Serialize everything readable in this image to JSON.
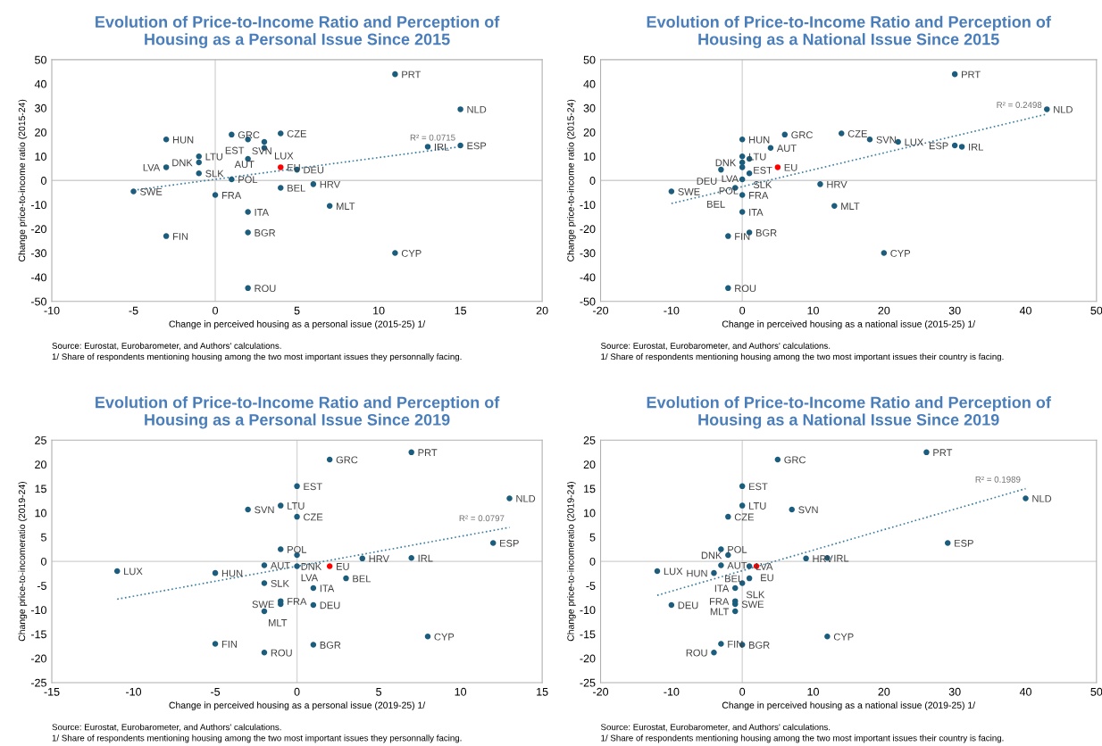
{
  "chart_data": [
    {
      "type": "scatter",
      "title": "Evolution of Price-to-Income Ratio and Perception of\nHousing as a Personal Issue Since 2015",
      "xlabel": "Change in perceived housing as a personal issue (2015-25) 1/",
      "ylabel": "Change price-to-income ratio (2015-24)",
      "marker": "circle",
      "x": [
        11,
        15,
        1,
        2,
        4,
        3,
        3,
        -3,
        -1,
        -1,
        2,
        -3,
        -1,
        4,
        5,
        13,
        15,
        1,
        -5,
        0,
        4,
        6,
        7,
        2,
        2,
        -3,
        11,
        2
      ],
      "series": [
        {
          "type": "scatter",
          "color": "#1c5d7d",
          "colors": [
            "#1c5d7d",
            "#1c5d7d",
            "#1c5d7d",
            "#1c5d7d",
            "#1c5d7d",
            "#1c5d7d",
            "#1c5d7d",
            "#1c5d7d",
            "#1c5d7d",
            "#1c5d7d",
            "#1c5d7d",
            "#1c5d7d",
            "#1c5d7d",
            "#ff0000",
            "#1c5d7d",
            "#1c5d7d",
            "#1c5d7d",
            "#1c5d7d",
            "#1c5d7d",
            "#1c5d7d",
            "#1c5d7d",
            "#1c5d7d",
            "#1c5d7d",
            "#1c5d7d",
            "#1c5d7d",
            "#1c5d7d",
            "#1c5d7d",
            "#1c5d7d"
          ],
          "values": [
            44,
            29.5,
            19,
            17,
            19.5,
            16,
            13.5,
            17,
            10,
            7.5,
            9,
            5.5,
            3,
            5.5,
            4.5,
            14,
            14.5,
            0.5,
            -4.5,
            -6,
            -3,
            -1.5,
            -10.5,
            -13,
            -21.5,
            -23,
            -30,
            -44.5
          ]
        },
        {
          "type": "line",
          "line_style": "dotted",
          "marker": "none",
          "color": "#3b7ea1",
          "x": [
            -5,
            15
          ],
          "values": [
            -4,
            14
          ]
        }
      ],
      "xlim": [
        -10,
        20
      ],
      "xticks": [
        -10,
        -5,
        0,
        5,
        10,
        15,
        20
      ],
      "ylim": [
        -50,
        50
      ],
      "yticks": [
        -50,
        -40,
        -30,
        -20,
        -10,
        0,
        10,
        20,
        30,
        40,
        50
      ],
      "ref_lines": [
        {
          "axis": "x",
          "value": 0,
          "color": "#d6d6d6"
        },
        {
          "axis": "y",
          "value": 0,
          "color": "#d0d0d0"
        }
      ],
      "annotations": [
        "Source: Eurostat, Eurobarometer, and Authors' calculations.",
        "1/ Share of respondents mentioning housing among the two most important issues they personnally facing.",
        {
          "text": "PRT",
          "x": 11,
          "y": 44
        },
        {
          "text": "NLD",
          "x": 15,
          "y": 29.5
        },
        {
          "text": "GRC",
          "x": 1,
          "y": 19
        },
        {
          "text": "SVN",
          "x": 2,
          "y": 17
        },
        {
          "text": "CZE",
          "x": 4,
          "y": 19.5
        },
        {
          "text": "LUX",
          "x": 3,
          "y": 16
        },
        {
          "text": "AUT",
          "x": 3,
          "y": 13.5
        },
        {
          "text": "HUN",
          "x": -3,
          "y": 17
        },
        {
          "text": "LTU",
          "x": -1,
          "y": 10
        },
        {
          "text": "DNK",
          "x": -1,
          "y": 7.5
        },
        {
          "text": "EST",
          "x": 2,
          "y": 9
        },
        {
          "text": "LVA",
          "x": -3,
          "y": 5.5
        },
        {
          "text": "SLK",
          "x": -1,
          "y": 3
        },
        {
          "text": "EU",
          "x": 4,
          "y": 5.5
        },
        {
          "text": "DEU",
          "x": 5,
          "y": 4.5
        },
        {
          "text": "IRL",
          "x": 13,
          "y": 14
        },
        {
          "text": "ESP",
          "x": 15,
          "y": 14.5
        },
        {
          "text": "POL",
          "x": 1,
          "y": 0.5
        },
        {
          "text": "SWE",
          "x": -5,
          "y": -4.5
        },
        {
          "text": "FRA",
          "x": 0,
          "y": -6
        },
        {
          "text": "BEL",
          "x": 4,
          "y": -3
        },
        {
          "text": "HRV",
          "x": 6,
          "y": -1.5
        },
        {
          "text": "MLT",
          "x": 7,
          "y": -10.5
        },
        {
          "text": "ITA",
          "x": 2,
          "y": -13
        },
        {
          "text": "BGR",
          "x": 2,
          "y": -21.5
        },
        {
          "text": "FIN",
          "x": -3,
          "y": -23
        },
        {
          "text": "CYP",
          "x": 11,
          "y": -30
        },
        {
          "text": "ROU",
          "x": 2,
          "y": -44.5
        },
        "R² = 0.0715"
      ]
    },
    {
      "type": "scatter",
      "title": "Evolution of Price-to-Income Ratio and Perception of\nHousing as a National Issue Since 2015",
      "xlabel": "Change in perceived housing as a national issue (2015-25) 1/",
      "ylabel": "Change price-to-income ratio (2015-24)",
      "marker": "circle",
      "x": [
        30,
        43,
        6,
        18,
        14,
        22,
        4,
        0,
        0,
        0,
        1,
        0,
        1,
        5,
        -3,
        31,
        30,
        0,
        -10,
        0,
        -1,
        11,
        13,
        0,
        1,
        -2,
        20,
        -2
      ],
      "series": [
        {
          "type": "scatter",
          "color": "#1c5d7d",
          "colors": [
            "#1c5d7d",
            "#1c5d7d",
            "#1c5d7d",
            "#1c5d7d",
            "#1c5d7d",
            "#1c5d7d",
            "#1c5d7d",
            "#1c5d7d",
            "#1c5d7d",
            "#1c5d7d",
            "#1c5d7d",
            "#1c5d7d",
            "#1c5d7d",
            "#ff0000",
            "#1c5d7d",
            "#1c5d7d",
            "#1c5d7d",
            "#1c5d7d",
            "#1c5d7d",
            "#1c5d7d",
            "#1c5d7d",
            "#1c5d7d",
            "#1c5d7d",
            "#1c5d7d",
            "#1c5d7d",
            "#1c5d7d",
            "#1c5d7d",
            "#1c5d7d"
          ],
          "values": [
            44,
            29.5,
            19,
            17,
            19.5,
            16,
            13.5,
            17,
            10,
            7.5,
            9,
            5.5,
            3,
            5.5,
            4.5,
            14,
            14.5,
            0.5,
            -4.5,
            -6,
            -3,
            -1.5,
            -10.5,
            -13,
            -21.5,
            -23,
            -30,
            -44.5
          ]
        },
        {
          "type": "line",
          "line_style": "dotted",
          "marker": "none",
          "color": "#3b7ea1",
          "x": [
            -10,
            43
          ],
          "values": [
            -9.5,
            27.5
          ]
        }
      ],
      "xlim": [
        -20,
        50
      ],
      "xticks": [
        -20,
        -10,
        0,
        10,
        20,
        30,
        40,
        50
      ],
      "ylim": [
        -50,
        50
      ],
      "yticks": [
        -50,
        -40,
        -30,
        -20,
        -10,
        0,
        10,
        20,
        30,
        40,
        50
      ],
      "ref_lines": [
        {
          "axis": "x",
          "value": 0,
          "color": "#d6d6d6"
        },
        {
          "axis": "y",
          "value": 0,
          "color": "#d0d0d0"
        }
      ],
      "annotations": [
        "Source: Eurostat, Eurobarometer, and Authors' calculations.",
        "1/ Share of respondents mentioning housing among the two most important issues their country is facing.",
        {
          "text": "PRT",
          "x": 30,
          "y": 44
        },
        {
          "text": "NLD",
          "x": 43,
          "y": 29.5
        },
        {
          "text": "GRC",
          "x": 6,
          "y": 19
        },
        {
          "text": "SVN",
          "x": 18,
          "y": 17
        },
        {
          "text": "CZE",
          "x": 14,
          "y": 19.5
        },
        {
          "text": "LUX",
          "x": 22,
          "y": 16
        },
        {
          "text": "AUT",
          "x": 4,
          "y": 13.5
        },
        {
          "text": "HUN",
          "x": 0,
          "y": 17
        },
        {
          "text": "LTU",
          "x": 0,
          "y": 10
        },
        {
          "text": "DNK",
          "x": 0,
          "y": 7.5
        },
        {
          "text": "EST",
          "x": 1,
          "y": 9
        },
        {
          "text": "LVA",
          "x": 0,
          "y": 5.5
        },
        {
          "text": "SLK",
          "x": 1,
          "y": 3
        },
        {
          "text": "EU",
          "x": 5,
          "y": 5.5
        },
        {
          "text": "DEU",
          "x": -3,
          "y": 4.5
        },
        {
          "text": "IRL",
          "x": 31,
          "y": 14
        },
        {
          "text": "ESP",
          "x": 30,
          "y": 14.5
        },
        {
          "text": "POL",
          "x": 0,
          "y": 0.5
        },
        {
          "text": "SWE",
          "x": -10,
          "y": -4.5
        },
        {
          "text": "FRA",
          "x": 0,
          "y": -6
        },
        {
          "text": "BEL",
          "x": -1,
          "y": -3
        },
        {
          "text": "HRV",
          "x": 11,
          "y": -1.5
        },
        {
          "text": "MLT",
          "x": 13,
          "y": -10.5
        },
        {
          "text": "ITA",
          "x": 0,
          "y": -13
        },
        {
          "text": "BGR",
          "x": 1,
          "y": -21.5
        },
        {
          "text": "FIN",
          "x": -2,
          "y": -23
        },
        {
          "text": "CYP",
          "x": 20,
          "y": -30
        },
        {
          "text": "ROU",
          "x": -2,
          "y": -44.5
        },
        "R² = 0.2498"
      ]
    },
    {
      "type": "scatter",
      "title": "Evolution of Price-to-Income Ratio and Perception of\nHousing as a Personal Issue Since 2019",
      "xlabel": "Change in perceived housing as a personal issue (2019-25) 1/",
      "ylabel": "Change price-to-incomeratio (2019-24)",
      "marker": "circle",
      "x": [
        7,
        2,
        0,
        13,
        -3,
        -1,
        0,
        12,
        -1,
        0,
        4,
        7,
        -2,
        0,
        2,
        -11,
        -5,
        3,
        -2,
        1,
        -1,
        -1,
        1,
        -2,
        8,
        -5,
        1,
        -2
      ],
      "series": [
        {
          "type": "scatter",
          "color": "#1c5d7d",
          "colors": [
            "#1c5d7d",
            "#1c5d7d",
            "#1c5d7d",
            "#1c5d7d",
            "#1c5d7d",
            "#1c5d7d",
            "#1c5d7d",
            "#1c5d7d",
            "#1c5d7d",
            "#1c5d7d",
            "#1c5d7d",
            "#1c5d7d",
            "#1c5d7d",
            "#1c5d7d",
            "#ff0000",
            "#1c5d7d",
            "#1c5d7d",
            "#1c5d7d",
            "#1c5d7d",
            "#1c5d7d",
            "#1c5d7d",
            "#1c5d7d",
            "#1c5d7d",
            "#1c5d7d",
            "#1c5d7d",
            "#1c5d7d",
            "#1c5d7d",
            "#1c5d7d"
          ],
          "values": [
            22.5,
            21,
            15.5,
            13,
            10.7,
            11.5,
            9.2,
            3.8,
            2.5,
            1.3,
            0.6,
            0.7,
            -0.8,
            -1,
            -1,
            -2,
            -2.4,
            -3.5,
            -4.5,
            -5.5,
            -8.2,
            -8.8,
            -9,
            -10.3,
            -15.5,
            -17,
            -17.2,
            -18.8
          ]
        },
        {
          "type": "line",
          "line_style": "dotted",
          "marker": "none",
          "color": "#3b7ea1",
          "x": [
            -11,
            13
          ],
          "values": [
            -7.8,
            7
          ]
        }
      ],
      "xlim": [
        -15,
        15
      ],
      "xticks": [
        -15,
        -10,
        -5,
        0,
        5,
        10,
        15
      ],
      "ylim": [
        -25,
        25
      ],
      "yticks": [
        -25,
        -20,
        -15,
        -10,
        -5,
        0,
        5,
        10,
        15,
        20,
        25
      ],
      "ref_lines": [
        {
          "axis": "x",
          "value": 0,
          "color": "#d6d6d6"
        },
        {
          "axis": "y",
          "value": 0,
          "color": "#d0d0d0"
        }
      ],
      "annotations": [
        "Source: Eurostat, Eurobarometer, and Authors' calculations.",
        "1/ Share of respondents mentioning housing among the two most important issues they personnally facing.",
        {
          "text": "PRT",
          "x": 7,
          "y": 22.5
        },
        {
          "text": "GRC",
          "x": 2,
          "y": 21
        },
        {
          "text": "EST",
          "x": 0,
          "y": 15.5
        },
        {
          "text": "NLD",
          "x": 13,
          "y": 13
        },
        {
          "text": "SVN",
          "x": -3,
          "y": 10.7
        },
        {
          "text": "LTU",
          "x": -1,
          "y": 11.5
        },
        {
          "text": "CZE",
          "x": 0,
          "y": 9.2
        },
        {
          "text": "ESP",
          "x": 12,
          "y": 3.8
        },
        {
          "text": "POL",
          "x": -1,
          "y": 2.5
        },
        {
          "text": "DNK",
          "x": 0,
          "y": 1.3
        },
        {
          "text": "HRV",
          "x": 4,
          "y": 0.6
        },
        {
          "text": "IRL",
          "x": 7,
          "y": 0.7
        },
        {
          "text": "AUT",
          "x": -2,
          "y": -0.8
        },
        {
          "text": "LVA",
          "x": 0,
          "y": -1
        },
        {
          "text": "EU",
          "x": 2,
          "y": -1
        },
        {
          "text": "LUX",
          "x": -11,
          "y": -2
        },
        {
          "text": "HUN",
          "x": -5,
          "y": -2.4
        },
        {
          "text": "BEL",
          "x": 3,
          "y": -3.5
        },
        {
          "text": "SLK",
          "x": -2,
          "y": -4.5
        },
        {
          "text": "ITA",
          "x": 1,
          "y": -5.5
        },
        {
          "text": "FRA",
          "x": -1,
          "y": -8.2
        },
        {
          "text": "SWE",
          "x": -1,
          "y": -8.8
        },
        {
          "text": "DEU",
          "x": 1,
          "y": -9
        },
        {
          "text": "MLT",
          "x": -2,
          "y": -10.3
        },
        {
          "text": "CYP",
          "x": 8,
          "y": -15.5
        },
        {
          "text": "FIN",
          "x": -5,
          "y": -17
        },
        {
          "text": "BGR",
          "x": 1,
          "y": -17.2
        },
        {
          "text": "ROU",
          "x": -2,
          "y": -18.8
        },
        "R² = 0.0797"
      ]
    },
    {
      "type": "scatter",
      "title": "Evolution of Price-to-Income Ratio and Perception of\nHousing as a National Issue Since 2019",
      "xlabel": "Change in perceived housing as a national issue (2019-25) 1/",
      "ylabel": "Change price-to-incomeratio (2019-24)",
      "marker": "circle",
      "x": [
        26,
        5,
        0,
        40,
        7,
        0,
        -2,
        29,
        -3,
        -2,
        9,
        12,
        -3,
        1,
        2,
        -12,
        -4,
        1,
        0,
        -1,
        -1,
        -1,
        -10,
        -1,
        12,
        -3,
        0,
        -4
      ],
      "series": [
        {
          "type": "scatter",
          "color": "#1c5d7d",
          "colors": [
            "#1c5d7d",
            "#1c5d7d",
            "#1c5d7d",
            "#1c5d7d",
            "#1c5d7d",
            "#1c5d7d",
            "#1c5d7d",
            "#1c5d7d",
            "#1c5d7d",
            "#1c5d7d",
            "#1c5d7d",
            "#1c5d7d",
            "#1c5d7d",
            "#1c5d7d",
            "#ff0000",
            "#1c5d7d",
            "#1c5d7d",
            "#1c5d7d",
            "#1c5d7d",
            "#1c5d7d",
            "#1c5d7d",
            "#1c5d7d",
            "#1c5d7d",
            "#1c5d7d",
            "#1c5d7d",
            "#1c5d7d",
            "#1c5d7d",
            "#1c5d7d"
          ],
          "values": [
            22.5,
            21,
            15.5,
            13,
            10.7,
            11.5,
            9.2,
            3.8,
            2.5,
            1.3,
            0.6,
            0.7,
            -0.8,
            -1,
            -1,
            -2,
            -2.4,
            -3.5,
            -4.5,
            -5.5,
            -8.2,
            -8.8,
            -9,
            -10.3,
            -15.5,
            -17,
            -17.2,
            -18.8
          ]
        },
        {
          "type": "line",
          "line_style": "dotted",
          "marker": "none",
          "color": "#3b7ea1",
          "x": [
            -12,
            40
          ],
          "values": [
            -7,
            15
          ]
        }
      ],
      "xlim": [
        -20,
        50
      ],
      "xticks": [
        -20,
        -10,
        0,
        10,
        20,
        30,
        40,
        50
      ],
      "ylim": [
        -25,
        25
      ],
      "yticks": [
        -25,
        -20,
        -15,
        -10,
        -5,
        0,
        5,
        10,
        15,
        20,
        25
      ],
      "ref_lines": [
        {
          "axis": "x",
          "value": 0,
          "color": "#d6d6d6"
        },
        {
          "axis": "y",
          "value": 0,
          "color": "#d0d0d0"
        }
      ],
      "annotations": [
        "Source: Eurostat, Eurobarometer, and Authors' calculations.",
        "1/ Share of respondents mentioning housing among the two most important issues their country is facing.",
        {
          "text": "PRT",
          "x": 26,
          "y": 22.5
        },
        {
          "text": "GRC",
          "x": 5,
          "y": 21
        },
        {
          "text": "EST",
          "x": 0,
          "y": 15.5
        },
        {
          "text": "NLD",
          "x": 40,
          "y": 13
        },
        {
          "text": "SVN",
          "x": 7,
          "y": 10.7
        },
        {
          "text": "LTU",
          "x": 0,
          "y": 11.5
        },
        {
          "text": "CZE",
          "x": -2,
          "y": 9.2
        },
        {
          "text": "ESP",
          "x": 29,
          "y": 3.8
        },
        {
          "text": "POL",
          "x": -3,
          "y": 2.5
        },
        {
          "text": "DNK",
          "x": -2,
          "y": 1.3
        },
        {
          "text": "HRV",
          "x": 9,
          "y": 0.6
        },
        {
          "text": "IRL",
          "x": 12,
          "y": 0.7
        },
        {
          "text": "AUT",
          "x": -3,
          "y": -0.8
        },
        {
          "text": "LVA",
          "x": 1,
          "y": -1
        },
        {
          "text": "EU",
          "x": 2,
          "y": -1
        },
        {
          "text": "LUX",
          "x": -12,
          "y": -2
        },
        {
          "text": "HUN",
          "x": -4,
          "y": -2.4
        },
        {
          "text": "BEL",
          "x": 1,
          "y": -3.5
        },
        {
          "text": "SLK",
          "x": 0,
          "y": -4.5
        },
        {
          "text": "ITA",
          "x": -1,
          "y": -5.5
        },
        {
          "text": "FRA",
          "x": -1,
          "y": -8.2
        },
        {
          "text": "SWE",
          "x": -1,
          "y": -8.8
        },
        {
          "text": "DEU",
          "x": -10,
          "y": -9
        },
        {
          "text": "MLT",
          "x": -1,
          "y": -10.3
        },
        {
          "text": "CYP",
          "x": 12,
          "y": -15.5
        },
        {
          "text": "FIN",
          "x": -3,
          "y": -17
        },
        {
          "text": "BGR",
          "x": 0,
          "y": -17.2
        },
        {
          "text": "ROU",
          "x": -4,
          "y": -18.8
        },
        "R² = 0.1989"
      ]
    }
  ]
}
